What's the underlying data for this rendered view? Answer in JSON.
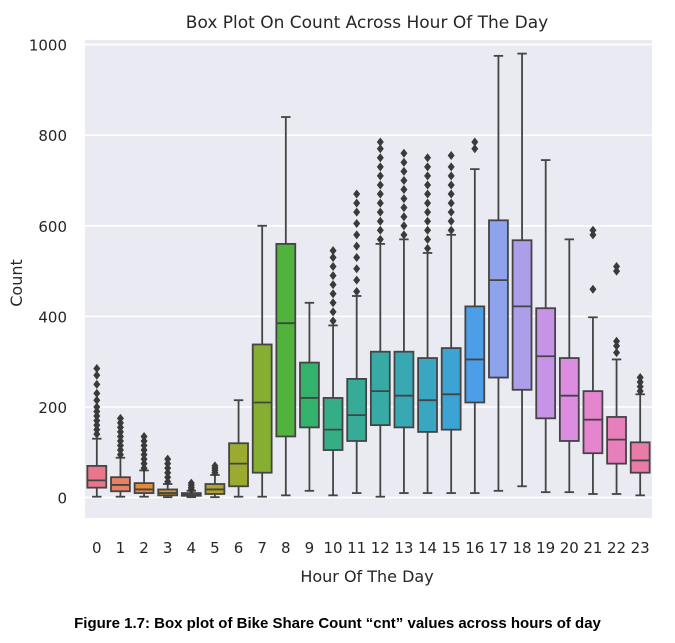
{
  "chart_data": {
    "type": "box",
    "title": "Box Plot On Count Across Hour Of The Day",
    "xlabel": "Hour Of The Day",
    "ylabel": "Count",
    "ylim": [
      -45,
      1010
    ],
    "yticks": [
      0,
      200,
      400,
      600,
      800,
      1000
    ],
    "grid": true,
    "background": "#eaeaf2",
    "categories": [
      "0",
      "1",
      "2",
      "3",
      "4",
      "5",
      "6",
      "7",
      "8",
      "9",
      "10",
      "11",
      "12",
      "13",
      "14",
      "15",
      "16",
      "17",
      "18",
      "19",
      "20",
      "21",
      "22",
      "23"
    ],
    "boxes": [
      {
        "hour": "0",
        "whisker_low": 2,
        "q1": 22,
        "median": 38,
        "q3": 70,
        "whisker_high": 130,
        "color": "#e9778b",
        "outliers": [
          140,
          150,
          160,
          170,
          180,
          190,
          200,
          215,
          230,
          250,
          270,
          285
        ]
      },
      {
        "hour": "1",
        "whisker_low": 2,
        "q1": 14,
        "median": 28,
        "q3": 45,
        "whisker_high": 88,
        "color": "#e88264",
        "outliers": [
          95,
          105,
          115,
          125,
          135,
          145,
          155,
          165,
          175
        ]
      },
      {
        "hour": "2",
        "whisker_low": 2,
        "q1": 10,
        "median": 18,
        "q3": 32,
        "whisker_high": 60,
        "color": "#e38a3e",
        "outliers": [
          65,
          75,
          85,
          95,
          105,
          115,
          125,
          135
        ]
      },
      {
        "hour": "3",
        "whisker_low": 1,
        "q1": 5,
        "median": 10,
        "q3": 18,
        "whisker_high": 30,
        "color": "#d1942f",
        "outliers": [
          35,
          45,
          55,
          65,
          75,
          85
        ]
      },
      {
        "hour": "4",
        "whisker_low": 1,
        "q1": 4,
        "median": 6,
        "q3": 10,
        "whisker_high": 15,
        "color": "#c09d2e",
        "outliers": [
          18,
          22,
          27,
          32
        ]
      },
      {
        "hour": "5",
        "whisker_low": 1,
        "q1": 8,
        "median": 18,
        "q3": 30,
        "whisker_high": 50,
        "color": "#b0a42f",
        "outliers": [
          55,
          60,
          65,
          70
        ]
      },
      {
        "hour": "6",
        "whisker_low": 2,
        "q1": 25,
        "median": 75,
        "q3": 120,
        "whisker_high": 215,
        "color": "#9baa31",
        "outliers": []
      },
      {
        "hour": "7",
        "whisker_low": 2,
        "q1": 55,
        "median": 210,
        "q3": 338,
        "whisker_high": 600,
        "color": "#86ae31",
        "outliers": []
      },
      {
        "hour": "8",
        "whisker_low": 5,
        "q1": 135,
        "median": 385,
        "q3": 560,
        "whisker_high": 840,
        "color": "#51b33b",
        "outliers": []
      },
      {
        "hour": "9",
        "whisker_low": 15,
        "q1": 155,
        "median": 220,
        "q3": 298,
        "whisker_high": 430,
        "color": "#33b26b",
        "outliers": []
      },
      {
        "hour": "10",
        "whisker_low": 5,
        "q1": 105,
        "median": 150,
        "q3": 220,
        "whisker_high": 380,
        "color": "#35ae87",
        "outliers": [
          390,
          410,
          430,
          450,
          470,
          490,
          510,
          530,
          545
        ]
      },
      {
        "hour": "11",
        "whisker_low": 10,
        "q1": 125,
        "median": 182,
        "q3": 262,
        "whisker_high": 445,
        "color": "#36ac98",
        "outliers": [
          455,
          480,
          505,
          530,
          555,
          580,
          605,
          630,
          650,
          670
        ]
      },
      {
        "hour": "12",
        "whisker_low": 2,
        "q1": 160,
        "median": 235,
        "q3": 322,
        "whisker_high": 560,
        "color": "#37aaa6",
        "outliers": [
          570,
          590,
          610,
          630,
          650,
          670,
          690,
          710,
          730,
          750,
          770,
          785
        ]
      },
      {
        "hour": "13",
        "whisker_low": 10,
        "q1": 155,
        "median": 225,
        "q3": 322,
        "whisker_high": 570,
        "color": "#38a9b3",
        "outliers": [
          580,
          600,
          620,
          640,
          660,
          680,
          700,
          720,
          740,
          760
        ]
      },
      {
        "hour": "14",
        "whisker_low": 10,
        "q1": 145,
        "median": 215,
        "q3": 308,
        "whisker_high": 540,
        "color": "#3aa7c2",
        "outliers": [
          550,
          570,
          590,
          610,
          630,
          650,
          670,
          690,
          710,
          730,
          750
        ]
      },
      {
        "hour": "15",
        "whisker_low": 10,
        "q1": 150,
        "median": 228,
        "q3": 330,
        "whisker_high": 580,
        "color": "#3ca4d4",
        "outliers": [
          590,
          610,
          630,
          650,
          670,
          690,
          710,
          730,
          755
        ]
      },
      {
        "hour": "16",
        "whisker_low": 10,
        "q1": 210,
        "median": 305,
        "q3": 422,
        "whisker_high": 725,
        "color": "#4c9ee6",
        "outliers": [
          770,
          785
        ]
      },
      {
        "hour": "17",
        "whisker_low": 15,
        "q1": 265,
        "median": 480,
        "q3": 612,
        "whisker_high": 975,
        "color": "#8ea3ec",
        "outliers": []
      },
      {
        "hour": "18",
        "whisker_low": 25,
        "q1": 238,
        "median": 422,
        "q3": 568,
        "whisker_high": 980,
        "color": "#ac9ee9",
        "outliers": []
      },
      {
        "hour": "19",
        "whisker_low": 12,
        "q1": 175,
        "median": 312,
        "q3": 418,
        "whisker_high": 745,
        "color": "#c693e6",
        "outliers": []
      },
      {
        "hour": "20",
        "whisker_low": 12,
        "q1": 125,
        "median": 225,
        "q3": 308,
        "whisker_high": 570,
        "color": "#dc8de2",
        "outliers": []
      },
      {
        "hour": "21",
        "whisker_low": 8,
        "q1": 98,
        "median": 172,
        "q3": 235,
        "whisker_high": 398,
        "color": "#e584cf",
        "outliers": [
          460,
          580,
          590
        ]
      },
      {
        "hour": "22",
        "whisker_low": 8,
        "q1": 75,
        "median": 128,
        "q3": 178,
        "whisker_high": 305,
        "color": "#e77fbc",
        "outliers": [
          320,
          335,
          345,
          500,
          510
        ]
      },
      {
        "hour": "23",
        "whisker_low": 5,
        "q1": 55,
        "median": 82,
        "q3": 122,
        "whisker_high": 228,
        "color": "#e87ba7",
        "outliers": [
          235,
          245,
          255,
          265
        ]
      }
    ]
  },
  "caption": "Figure 1.7: Box plot of Bike Share Count “cnt” values across hours of day"
}
